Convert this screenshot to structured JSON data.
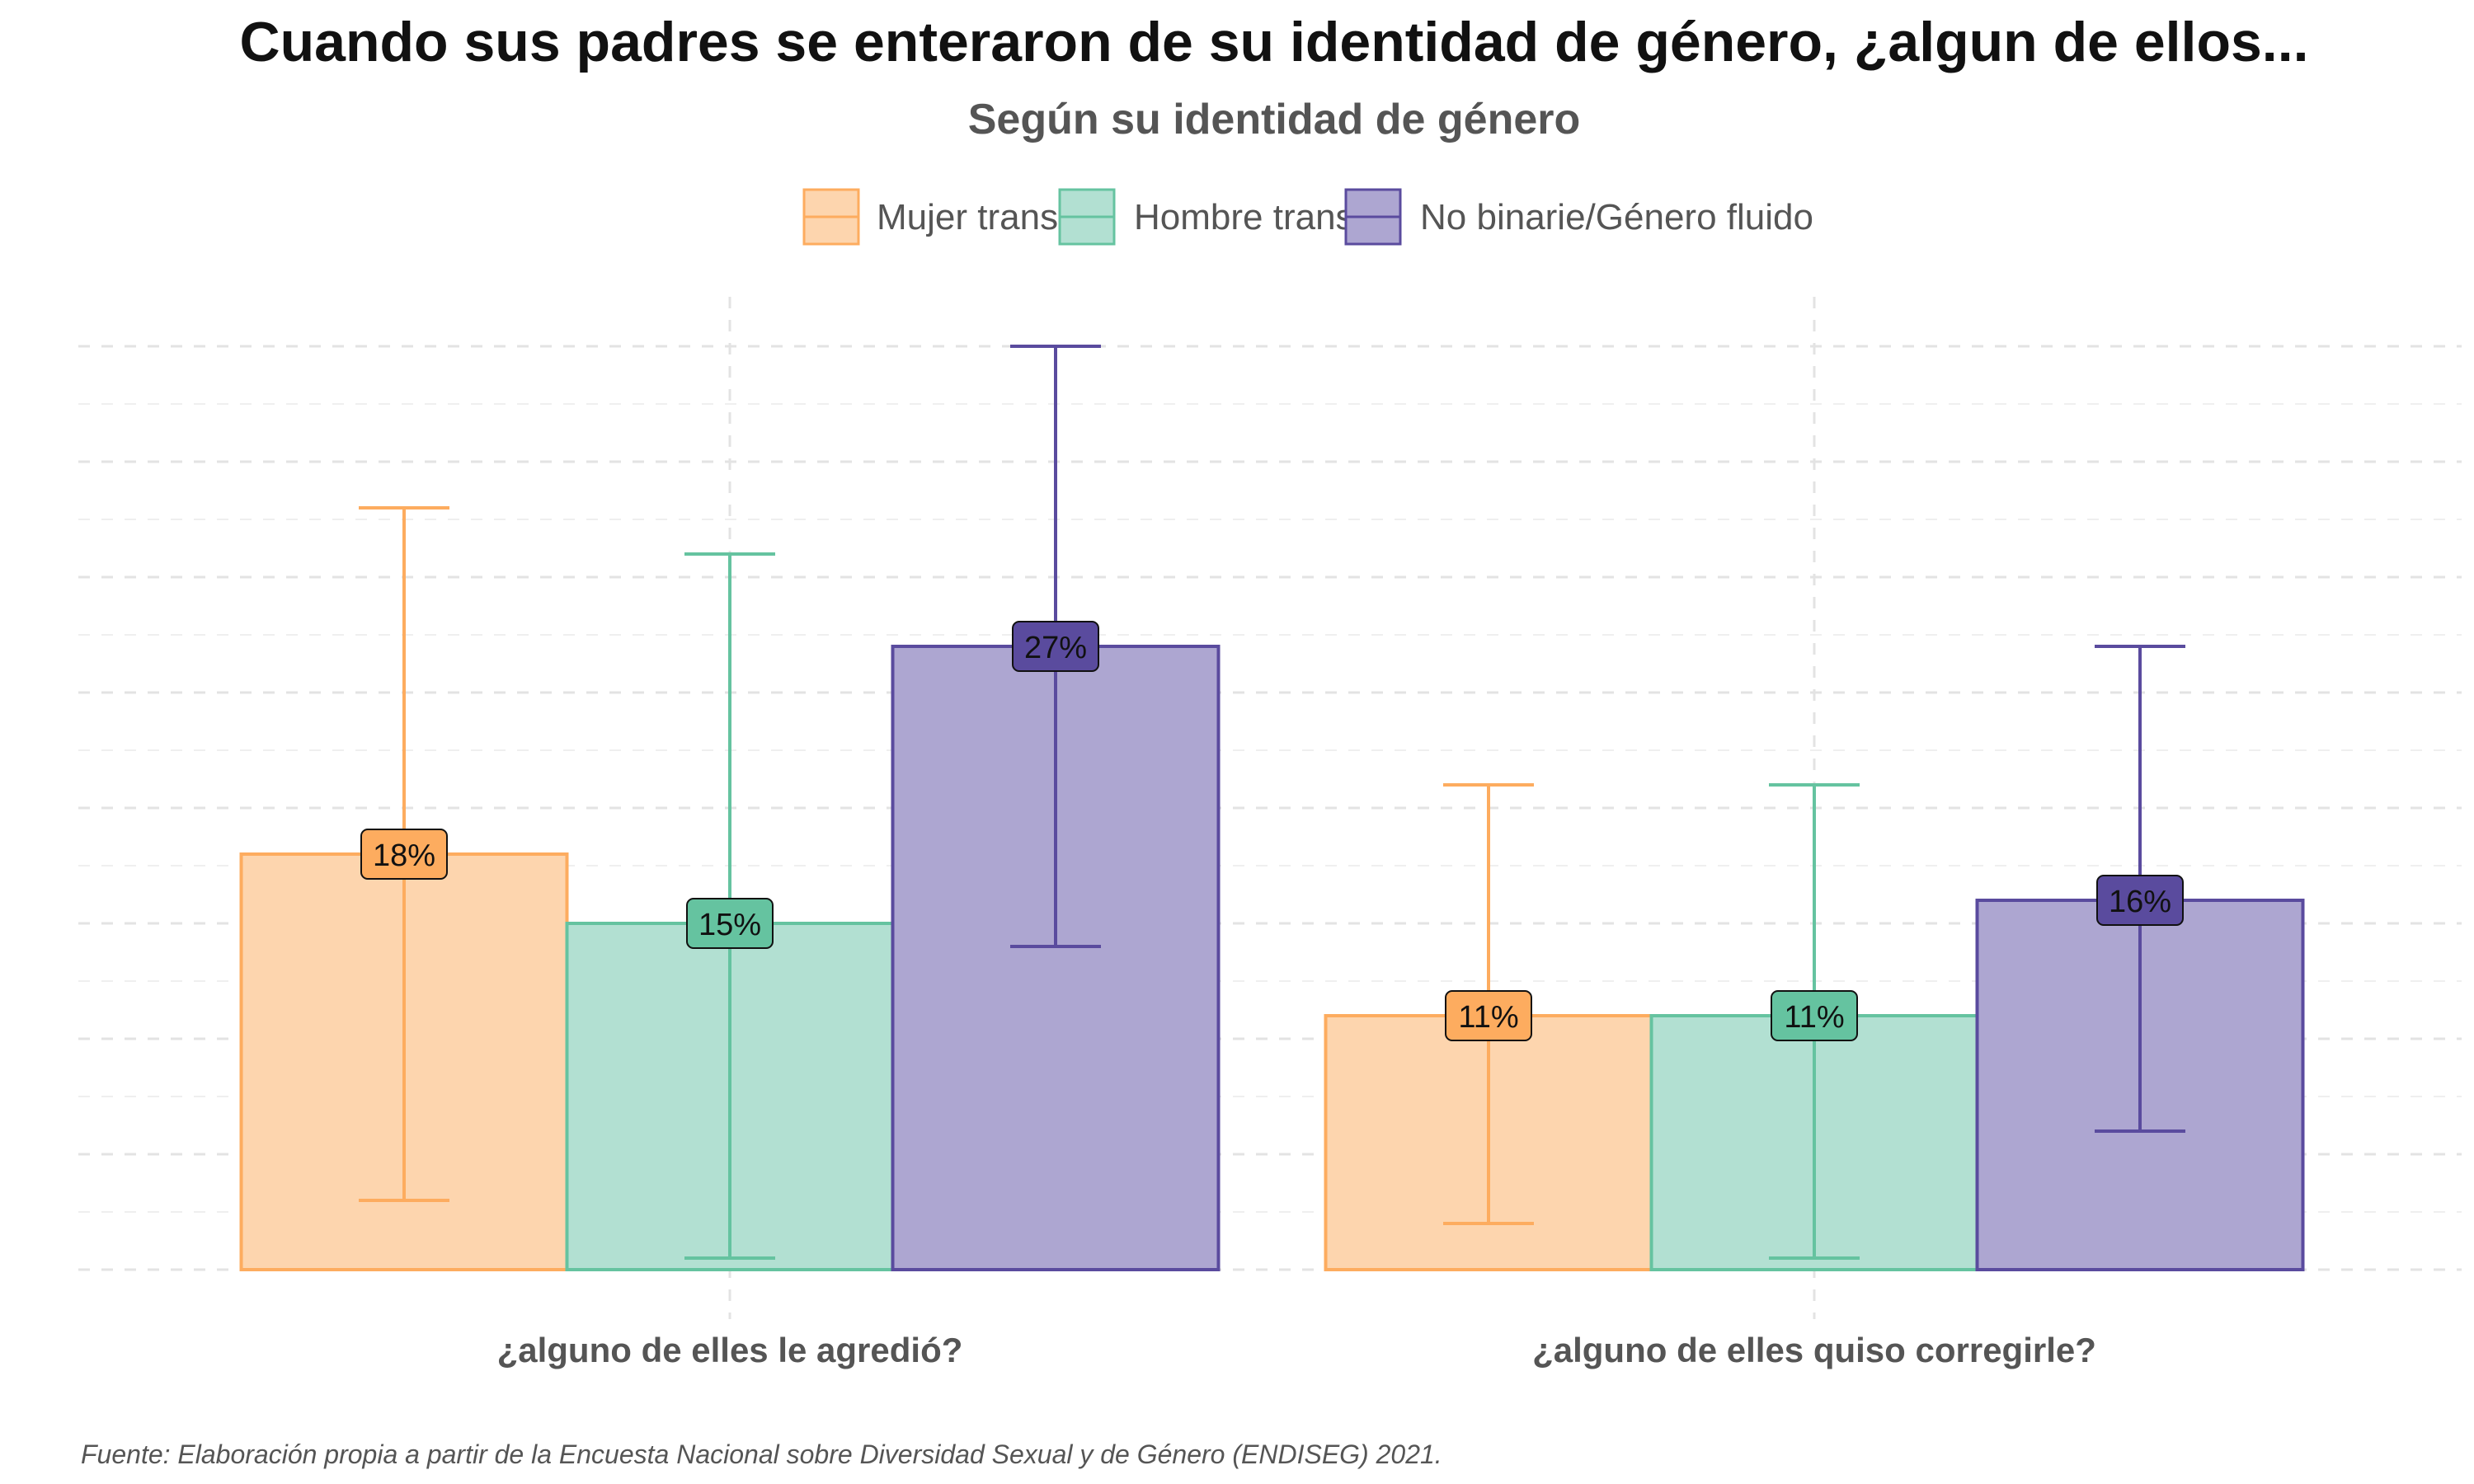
{
  "title": "Cuando sus padres se enteraron de su identidad de género, ¿algun de ellos...",
  "subtitle": "Según su identidad de género",
  "caption": "Fuente: Elaboración propia a partir de la Encuesta Nacional sobre Diversidad Sexual y de Género (ENDISEG) 2021.",
  "colors": {
    "Mujer trans": {
      "fill": "#FDD5AE",
      "stroke": "#FDAC5F",
      "label_bg": "#FDAC5F"
    },
    "Hombre trans": {
      "fill": "#B2E0D2",
      "stroke": "#65C3A0",
      "label_bg": "#65C3A0"
    },
    "No binarie/Género fluido": {
      "fill": "#ADA6D1",
      "stroke": "#5A4B9E",
      "label_bg": "#5A4B9E"
    }
  },
  "chart_data": {
    "type": "bar",
    "categories": [
      "¿alguno de elles le agredió?",
      "¿alguno de elles quiso corregirle?"
    ],
    "series": [
      {
        "name": "Mujer trans",
        "values": [
          18,
          11
        ],
        "ci_low": [
          3,
          2
        ],
        "ci_high": [
          33,
          21
        ],
        "labels": [
          "18%",
          "11%"
        ]
      },
      {
        "name": "Hombre trans",
        "values": [
          15,
          11
        ],
        "ci_low": [
          0.5,
          0.5
        ],
        "ci_high": [
          31,
          21
        ],
        "labels": [
          "15%",
          "11%"
        ]
      },
      {
        "name": "No binarie/Género fluido",
        "values": [
          27,
          16
        ],
        "ci_low": [
          14,
          6
        ],
        "ci_high": [
          40,
          27
        ],
        "labels": [
          "27%",
          "16%"
        ]
      }
    ],
    "xlabel": "",
    "ylabel": "",
    "ylim": [
      0,
      40
    ],
    "grid": true,
    "legend_position": "top"
  }
}
